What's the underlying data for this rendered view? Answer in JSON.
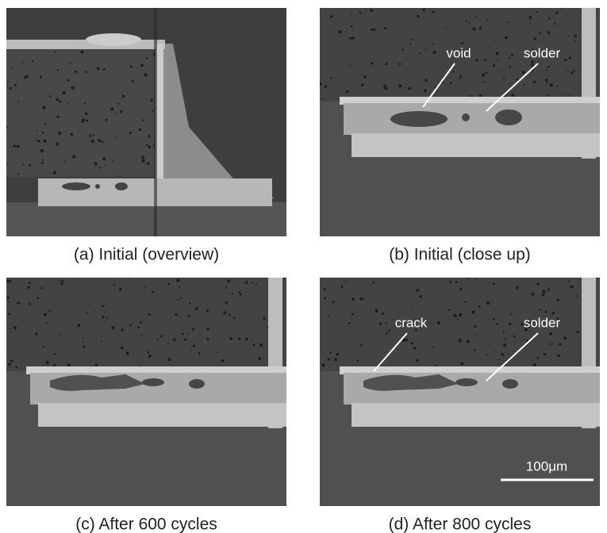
{
  "panels": [
    {
      "caption": "(a) Initial (overview)",
      "labels": []
    },
    {
      "caption": "(b) Initial (close up)",
      "labels": [
        "void",
        "solder"
      ]
    },
    {
      "caption": "(c) After 600 cycles",
      "labels": []
    },
    {
      "caption": "(d) After 800 cycles",
      "labels": [
        "crack",
        "solder"
      ]
    }
  ],
  "scale_bar": {
    "label": "100μm"
  }
}
